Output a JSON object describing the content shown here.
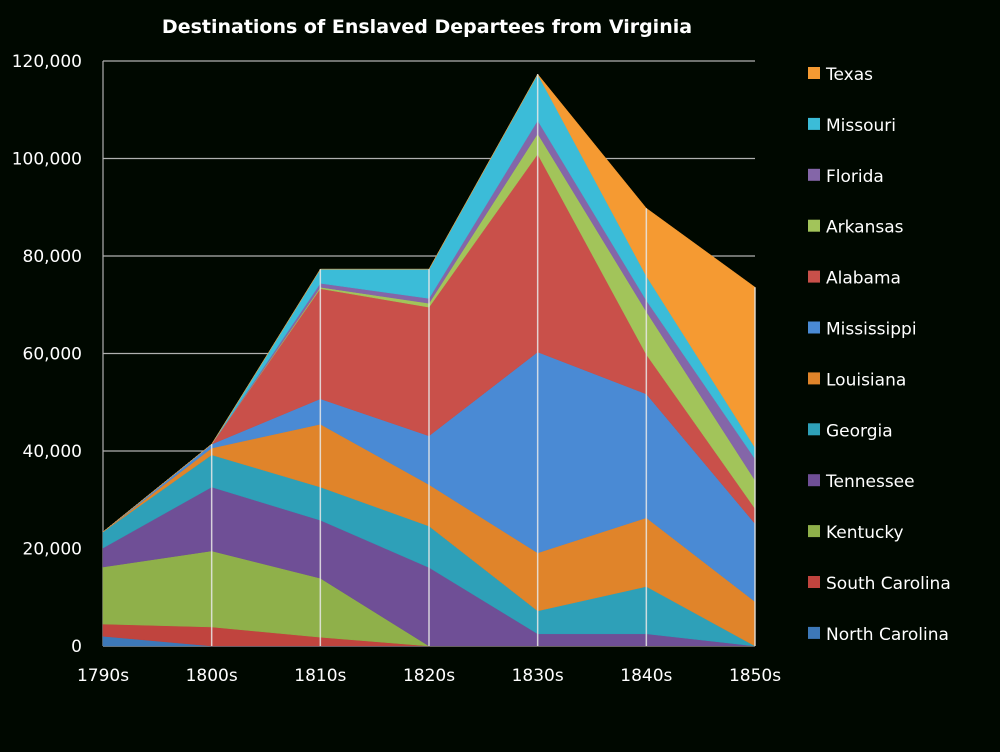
{
  "chart_data": {
    "type": "area",
    "stacked": true,
    "title": "Destinations of Enslaved Departees from Virginia",
    "xlabel": "",
    "ylabel": "",
    "ylim": [
      0,
      120000
    ],
    "yticks": [
      "0",
      "20,000",
      "40,000",
      "60,000",
      "80,000",
      "100,000",
      "120,000"
    ],
    "categories": [
      "1790s",
      "1800s",
      "1810s",
      "1820s",
      "1830s",
      "1840s",
      "1850s"
    ],
    "grid": true,
    "legend_position": "right",
    "series": [
      {
        "name": "North Carolina",
        "color": "#3d78b8",
        "values": [
          2000,
          0,
          0,
          0,
          0,
          0,
          0
        ]
      },
      {
        "name": "South Carolina",
        "color": "#c0443e",
        "values": [
          2500,
          3900,
          1800,
          0,
          0,
          0,
          0
        ]
      },
      {
        "name": "Kentucky",
        "color": "#8fb04a",
        "values": [
          11700,
          15600,
          12100,
          0,
          0,
          0,
          0
        ]
      },
      {
        "name": "Tennessee",
        "color": "#6f4f96",
        "values": [
          3900,
          13100,
          11900,
          16100,
          2500,
          2500,
          0
        ]
      },
      {
        "name": "Georgia",
        "color": "#2ea0b8",
        "values": [
          3300,
          6600,
          6800,
          8500,
          4700,
          9700,
          0
        ]
      },
      {
        "name": "Louisiana",
        "color": "#e0842a",
        "values": [
          0,
          1400,
          12900,
          8500,
          11900,
          14100,
          9100
        ]
      },
      {
        "name": "Mississippi",
        "color": "#4a8ad4",
        "values": [
          0,
          800,
          5200,
          10000,
          41200,
          25400,
          16000
        ]
      },
      {
        "name": "Alabama",
        "color": "#c9504a",
        "values": [
          0,
          0,
          22600,
          26400,
          40600,
          8100,
          3100
        ]
      },
      {
        "name": "Arkansas",
        "color": "#a2c45a",
        "values": [
          0,
          0,
          300,
          800,
          4200,
          8800,
          5800
        ]
      },
      {
        "name": "Florida",
        "color": "#8466a8",
        "values": [
          0,
          0,
          800,
          1000,
          2700,
          2300,
          4400
        ]
      },
      {
        "name": "Missouri",
        "color": "#3bbcd8",
        "values": [
          0,
          0,
          2900,
          6000,
          9500,
          5000,
          2300
        ]
      },
      {
        "name": "Texas",
        "color": "#f59a32",
        "values": [
          0,
          0,
          0,
          0,
          0,
          13900,
          32900
        ]
      }
    ]
  }
}
